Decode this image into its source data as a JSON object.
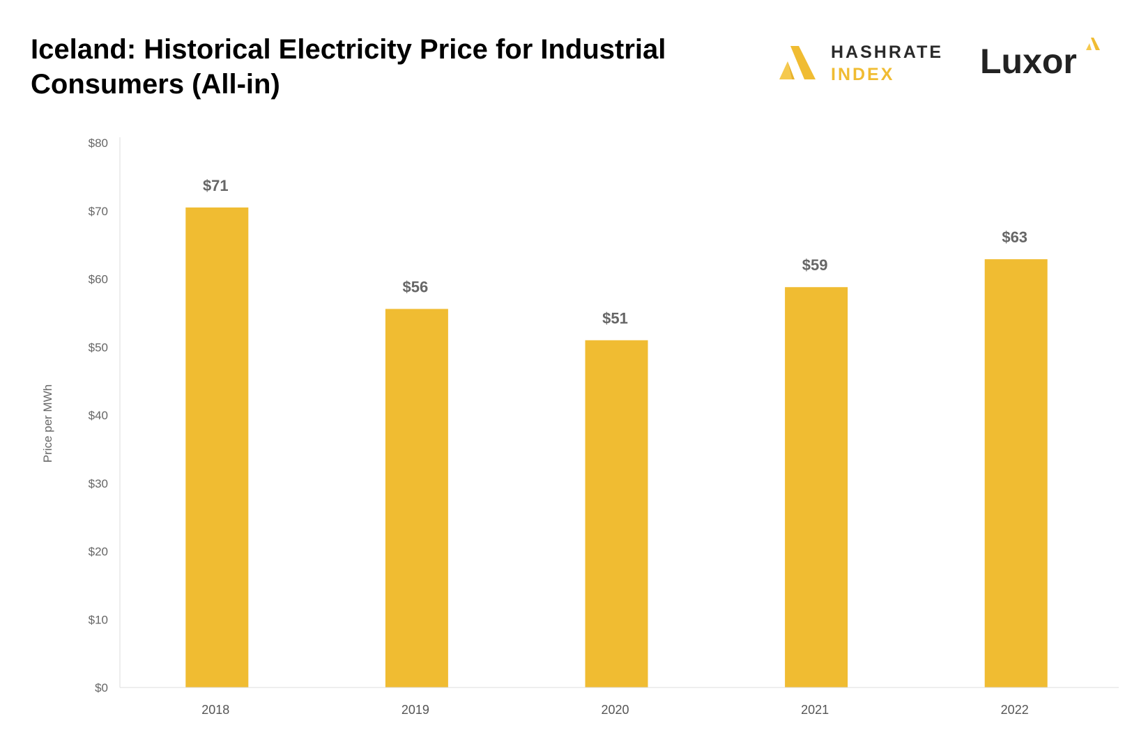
{
  "header": {
    "title_line1": "Iceland: Historical Electricity Price for Industrial",
    "title_line2": "Consumers (All-in)"
  },
  "logos": {
    "hashrate_word1": "HASHRATE",
    "hashrate_word2": "INDEX",
    "luxor_word": "Luxor",
    "hashrate_icon": "hashrate-index-mark-icon",
    "luxor_icon": "luxor-triangle-mark-icon"
  },
  "colors": {
    "bar": "#f0bc32",
    "accent": "#f0bc32"
  },
  "chart_data": {
    "type": "bar",
    "title": "Iceland: Historical Electricity Price for Industrial Consumers (All-in)",
    "xlabel": "",
    "ylabel": "Price per MWh",
    "categories": [
      "2018",
      "2019",
      "2020",
      "2021",
      "2022"
    ],
    "values": [
      70.5,
      55.6,
      51.0,
      58.8,
      62.9
    ],
    "data_labels": [
      "$71",
      "$56",
      "$51",
      "$59",
      "$63"
    ],
    "ylim": [
      0,
      80
    ],
    "yticks": [
      0,
      10,
      20,
      30,
      40,
      50,
      60,
      70,
      80
    ],
    "ytick_labels": [
      "$0",
      "$10",
      "$20",
      "$30",
      "$40",
      "$50",
      "$60",
      "$70",
      "$80"
    ],
    "grid": false,
    "legend": "none"
  }
}
